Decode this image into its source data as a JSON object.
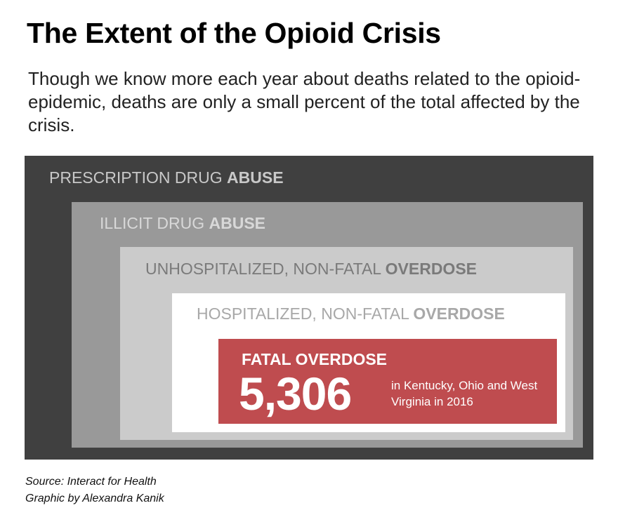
{
  "title": "The Extent of the Opioid Crisis",
  "subtitle": "Though we know more each year about deaths related to the opioid-epidemic, deaths are only a small percent of the total affected by the crisis.",
  "levels": [
    {
      "light": "PRESCRIPTION DRUG ",
      "bold": "ABUSE",
      "color": "#404040"
    },
    {
      "light": "ILLICIT DRUG ",
      "bold": "ABUSE",
      "color": "#999999"
    },
    {
      "light": "UNHOSPITALIZED, NON-FATAL ",
      "bold": "OVERDOSE",
      "color": "#cbcbcb"
    },
    {
      "light": "HOSPITALIZED, NON-FATAL ",
      "bold": "OVERDOSE",
      "color": "#ffffff"
    }
  ],
  "fatal": {
    "label": "FATAL OVERDOSE",
    "value": "5,306",
    "description": "in Kentucky, Ohio and West Virginia in 2016",
    "color": "#bf4c4f"
  },
  "source": "Source: Interact for Health",
  "credit": "Graphic by Alexandra Kanik"
}
